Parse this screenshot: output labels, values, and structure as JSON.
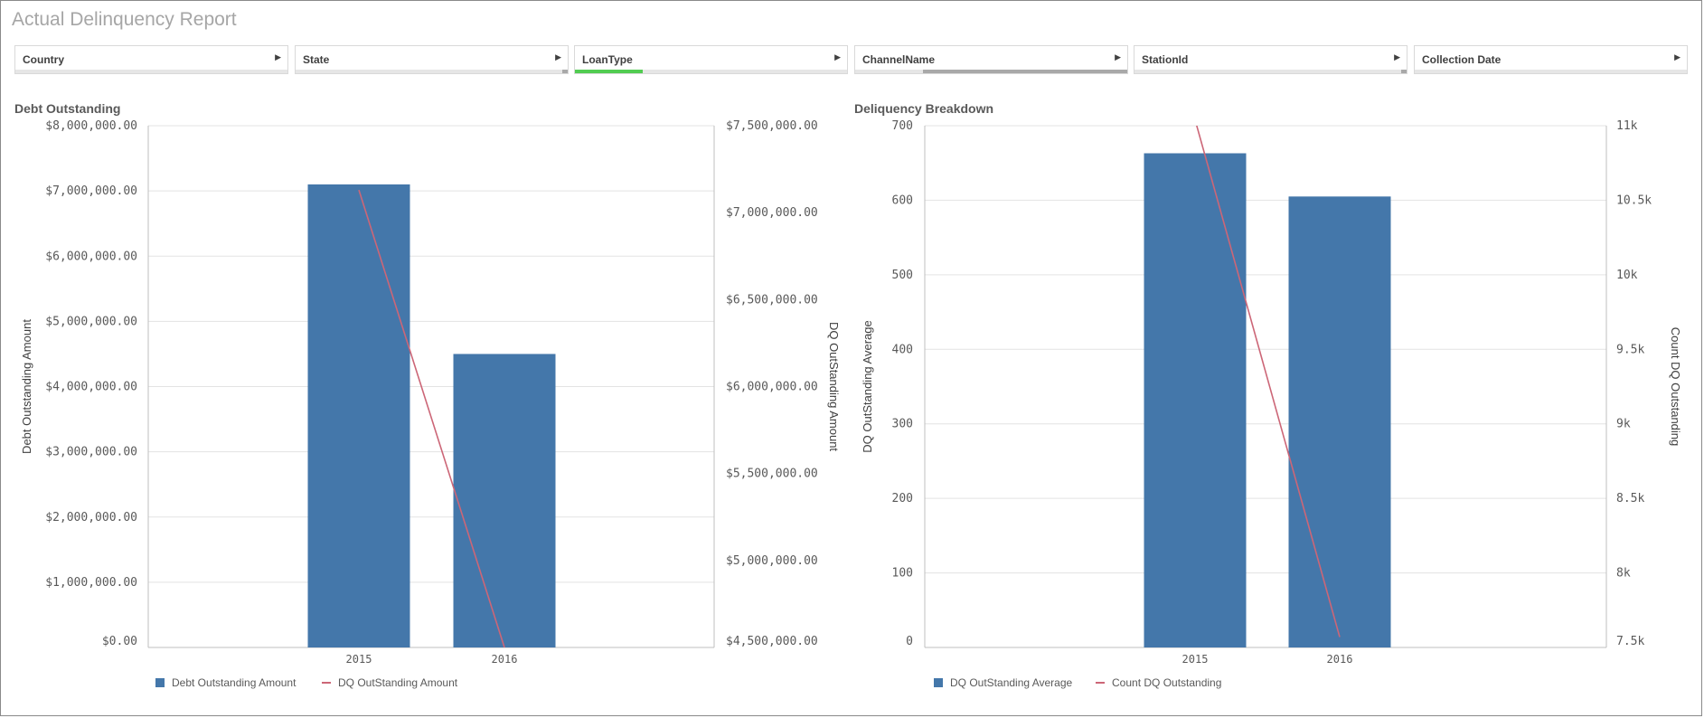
{
  "app": {
    "title": "Actual Delinquency Report"
  },
  "filters": [
    {
      "label": "Country",
      "selection_segments": []
    },
    {
      "label": "State",
      "selection_segments": [
        {
          "from": 0.98,
          "to": 1.0,
          "color": "#a9a9a9"
        }
      ]
    },
    {
      "label": "LoanType",
      "selection_segments": [
        {
          "from": 0.0,
          "to": 0.25,
          "color": "#52cc52"
        }
      ]
    },
    {
      "label": "ChannelName",
      "selection_segments": [
        {
          "from": 0.25,
          "to": 1.0,
          "color": "#a9a9a9"
        }
      ]
    },
    {
      "label": "StationId",
      "selection_segments": [
        {
          "from": 0.98,
          "to": 1.0,
          "color": "#a9a9a9"
        }
      ]
    },
    {
      "label": "Collection Date",
      "selection_segments": []
    }
  ],
  "chart_data": [
    {
      "type": "bar",
      "title": "Debt Outstanding",
      "categories": [
        "2015",
        "2016"
      ],
      "series": [
        {
          "name": "Debt Outstanding Amount",
          "kind": "bar",
          "axis": "left",
          "color": "#4477aa",
          "values": [
            7100000,
            4500000
          ]
        },
        {
          "name": "DQ OutStanding Amount",
          "kind": "line",
          "axis": "right",
          "color": "#cc6677",
          "values": [
            7130000,
            4500000
          ]
        }
      ],
      "ylabel": "Debt Outstanding Amount",
      "ylim": [
        0,
        8000000
      ],
      "yticks": [
        0,
        1000000,
        2000000,
        3000000,
        4000000,
        5000000,
        6000000,
        7000000,
        8000000
      ],
      "ytick_labels": [
        "$0.00",
        "$1,000,000.00",
        "$2,000,000.00",
        "$3,000,000.00",
        "$4,000,000.00",
        "$5,000,000.00",
        "$6,000,000.00",
        "$7,000,000.00",
        "$8,000,000.00"
      ],
      "y2label": "DQ OutStanding Amount",
      "y2lim": [
        4500000,
        7500000
      ],
      "y2ticks": [
        4500000,
        5000000,
        5500000,
        6000000,
        6500000,
        7000000,
        7500000
      ],
      "y2tick_labels": [
        "$4,500,000.00",
        "$5,000,000.00",
        "$5,500,000.00",
        "$6,000,000.00",
        "$6,500,000.00",
        "$7,000,000.00",
        "$7,500,000.00"
      ],
      "grid": true,
      "legend": "bottom-left"
    },
    {
      "type": "bar",
      "title": "Deliquency Breakdown",
      "categories": [
        "2015",
        "2016"
      ],
      "series": [
        {
          "name": "DQ OutStanding Average",
          "kind": "bar",
          "axis": "left",
          "color": "#4477aa",
          "values": [
            663,
            605
          ]
        },
        {
          "name": "Count DQ Outstanding",
          "kind": "line",
          "axis": "right",
          "color": "#cc6677",
          "values": [
            11040,
            7570
          ]
        }
      ],
      "ylabel": "DQ OutStanding Average",
      "ylim": [
        0,
        700
      ],
      "yticks": [
        0,
        100,
        200,
        300,
        400,
        500,
        600,
        700
      ],
      "ytick_labels": [
        "0",
        "100",
        "200",
        "300",
        "400",
        "500",
        "600",
        "700"
      ],
      "y2label": "Count DQ Outstanding",
      "y2lim": [
        7500,
        11000
      ],
      "y2ticks": [
        7500,
        8000,
        8500,
        9000,
        9500,
        10000,
        10500,
        11000
      ],
      "y2tick_labels": [
        "7.5k",
        "8k",
        "8.5k",
        "9k",
        "9.5k",
        "10k",
        "10.5k",
        "11k"
      ],
      "grid": true,
      "legend": "bottom-left"
    }
  ]
}
